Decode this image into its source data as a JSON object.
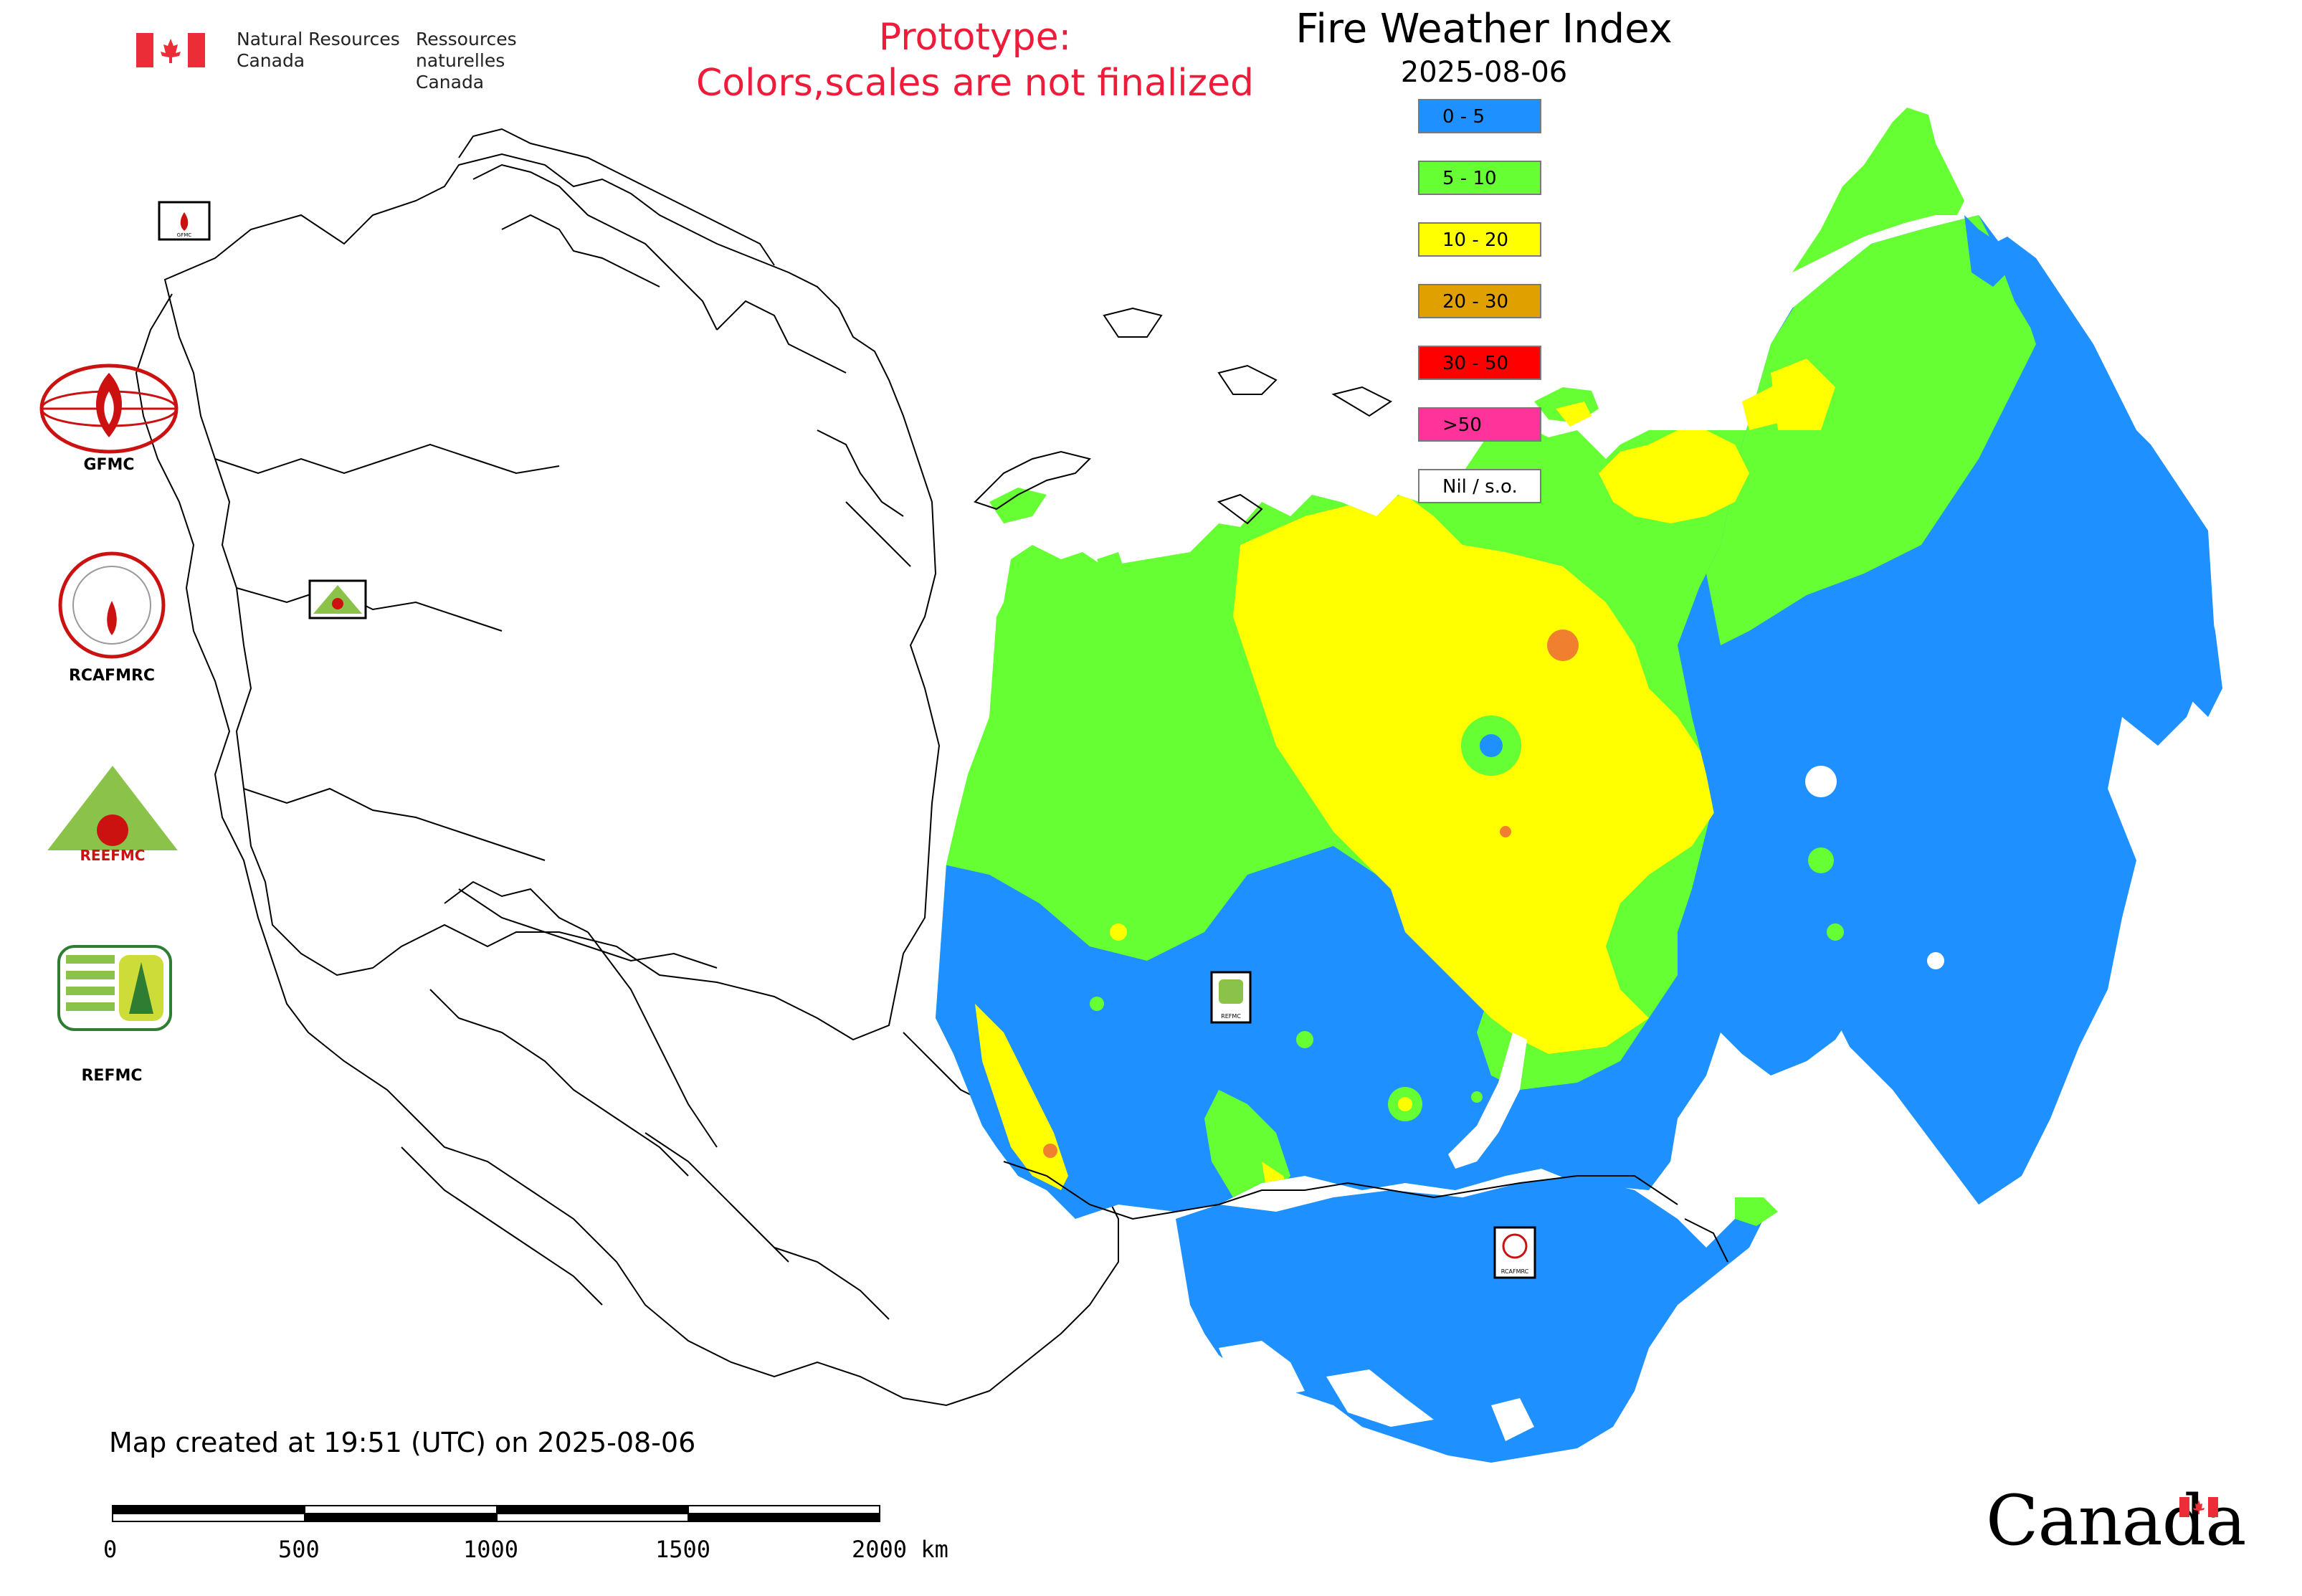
{
  "header": {
    "org_en_line1": "Natural Resources",
    "org_en_line2": "Canada",
    "org_fr_line1": "Ressources naturelles",
    "org_fr_line2": "Canada",
    "prototype_line1": "Prototype:",
    "prototype_line2": "Colors,scales are not finalized",
    "prototype_color": "#ee1c3a"
  },
  "map": {
    "title": "Fire Weather Index",
    "date": "2025-08-06",
    "created": "Map created at 19:51 (UTC) on 2025-08-06",
    "legend": [
      {
        "label": "0 - 5",
        "color": "#1e90ff"
      },
      {
        "label": "5 - 10",
        "color": "#66ff33"
      },
      {
        "label": "10 - 20",
        "color": "#ffff00"
      },
      {
        "label": "20 - 30",
        "color": "#e0a000"
      },
      {
        "label": "30 - 50",
        "color": "#ff0000"
      },
      {
        "label": ">50",
        "color": "#ff3399"
      },
      {
        "label": "Nil / s.o.",
        "color": "#ffffff"
      }
    ],
    "scale_bar": {
      "labels": [
        "0",
        "500",
        "1000",
        "1500",
        "2000 km"
      ]
    },
    "map_markers": [
      {
        "label": "GFMC",
        "icon": "gfmc-marker-icon"
      },
      {
        "label": "REEFMC",
        "icon": "reefmc-marker-icon"
      },
      {
        "label": "REFMC",
        "icon": "refmc-marker-icon"
      },
      {
        "label": "RCAFMRC",
        "icon": "rcafmrc-marker-icon"
      }
    ]
  },
  "logos": [
    {
      "label": "GFMC",
      "icon": "gfmc-logo-icon"
    },
    {
      "label": "RCAFMRC",
      "icon": "rcafmrc-logo-icon"
    },
    {
      "label": "REEFMC",
      "icon": "reefmc-logo-icon"
    },
    {
      "label": "REFMC",
      "icon": "refmc-logo-icon"
    }
  ],
  "footer": {
    "wordmark": "Canada"
  }
}
